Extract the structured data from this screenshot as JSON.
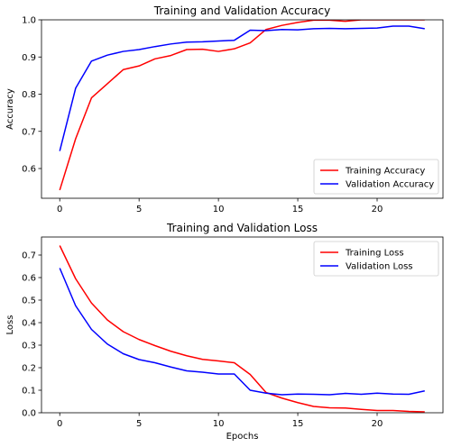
{
  "chart_data": [
    {
      "type": "line",
      "title": "Training and Validation Accuracy",
      "xlabel": "",
      "ylabel": "Accuracy",
      "xlim": [
        -1.15,
        24.15
      ],
      "ylim": [
        0.52,
        1.0
      ],
      "xticks": [
        0,
        5,
        10,
        15,
        20
      ],
      "yticks": [
        0.6,
        0.7,
        0.8,
        0.9,
        1.0
      ],
      "ytick_labels": [
        "0.6",
        "0.7",
        "0.8",
        "0.9",
        "1.0"
      ],
      "legend_position": "lower-right",
      "x": [
        0,
        1,
        2,
        3,
        4,
        5,
        6,
        7,
        8,
        9,
        10,
        11,
        12,
        13,
        14,
        15,
        16,
        17,
        18,
        19,
        20,
        21,
        22,
        23
      ],
      "series": [
        {
          "name": "Training Accuracy",
          "color": "#ff0000",
          "values": [
            0.542,
            0.68,
            0.79,
            0.828,
            0.866,
            0.876,
            0.895,
            0.904,
            0.92,
            0.921,
            0.915,
            0.922,
            0.938,
            0.974,
            0.985,
            0.993,
            0.999,
            0.999,
            0.996,
            1.0,
            1.0,
            1.0,
            1.0,
            1.0
          ]
        },
        {
          "name": "Validation Accuracy",
          "color": "#0000ff",
          "values": [
            0.647,
            0.816,
            0.889,
            0.905,
            0.915,
            0.92,
            0.928,
            0.935,
            0.94,
            0.941,
            0.943,
            0.945,
            0.972,
            0.971,
            0.974,
            0.973,
            0.976,
            0.977,
            0.976,
            0.977,
            0.978,
            0.983,
            0.983,
            0.976
          ]
        }
      ]
    },
    {
      "type": "line",
      "title": "Training and Validation Loss",
      "xlabel": "Epochs",
      "ylabel": "Loss",
      "xlim": [
        -1.15,
        24.15
      ],
      "ylim": [
        0.0,
        0.78
      ],
      "xticks": [
        0,
        5,
        10,
        15,
        20
      ],
      "yticks": [
        0.0,
        0.1,
        0.2,
        0.3,
        0.4,
        0.5,
        0.6,
        0.7
      ],
      "ytick_labels": [
        "0.0",
        "0.1",
        "0.2",
        "0.3",
        "0.4",
        "0.5",
        "0.6",
        "0.7"
      ],
      "legend_position": "upper-right",
      "x": [
        0,
        1,
        2,
        3,
        4,
        5,
        6,
        7,
        8,
        9,
        10,
        11,
        12,
        13,
        14,
        15,
        16,
        17,
        18,
        19,
        20,
        21,
        22,
        23
      ],
      "series": [
        {
          "name": "Training Loss",
          "color": "#ff0000",
          "values": [
            0.742,
            0.595,
            0.487,
            0.412,
            0.36,
            0.325,
            0.298,
            0.273,
            0.253,
            0.237,
            0.23,
            0.222,
            0.17,
            0.09,
            0.065,
            0.045,
            0.028,
            0.022,
            0.021,
            0.015,
            0.01,
            0.01,
            0.006,
            0.004
          ]
        },
        {
          "name": "Validation Loss",
          "color": "#0000ff",
          "values": [
            0.642,
            0.475,
            0.37,
            0.305,
            0.262,
            0.236,
            0.222,
            0.203,
            0.186,
            0.18,
            0.172,
            0.172,
            0.1,
            0.087,
            0.08,
            0.083,
            0.082,
            0.08,
            0.086,
            0.082,
            0.087,
            0.083,
            0.082,
            0.097
          ]
        }
      ]
    }
  ]
}
